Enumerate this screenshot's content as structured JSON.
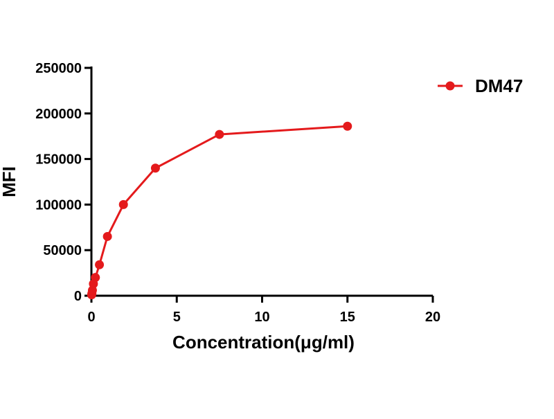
{
  "chart_data": {
    "type": "line",
    "title": "",
    "xlabel": "Concentration(μg/ml)",
    "ylabel": "MFI",
    "xlim": [
      0,
      20
    ],
    "ylim": [
      0,
      250000
    ],
    "x_ticks": [
      0,
      5,
      10,
      15,
      20
    ],
    "y_ticks": [
      0,
      50000,
      100000,
      150000,
      200000,
      250000
    ],
    "x_tick_labels": [
      "0",
      "5",
      "10",
      "15",
      "20"
    ],
    "y_tick_labels": [
      "0",
      "50000",
      "100000",
      "150000",
      "200000",
      "250000"
    ],
    "grid": false,
    "legend_position": "right",
    "series": [
      {
        "name": "DM47",
        "color": "#e41a1c",
        "x": [
          0.0146,
          0.0293,
          0.0586,
          0.117,
          0.234,
          0.469,
          0.938,
          1.875,
          3.75,
          7.5,
          15
        ],
        "y": [
          1000,
          2500,
          6000,
          13000,
          20000,
          34000,
          65000,
          100000,
          140000,
          177000,
          186000
        ],
        "marker": "circle"
      }
    ]
  }
}
